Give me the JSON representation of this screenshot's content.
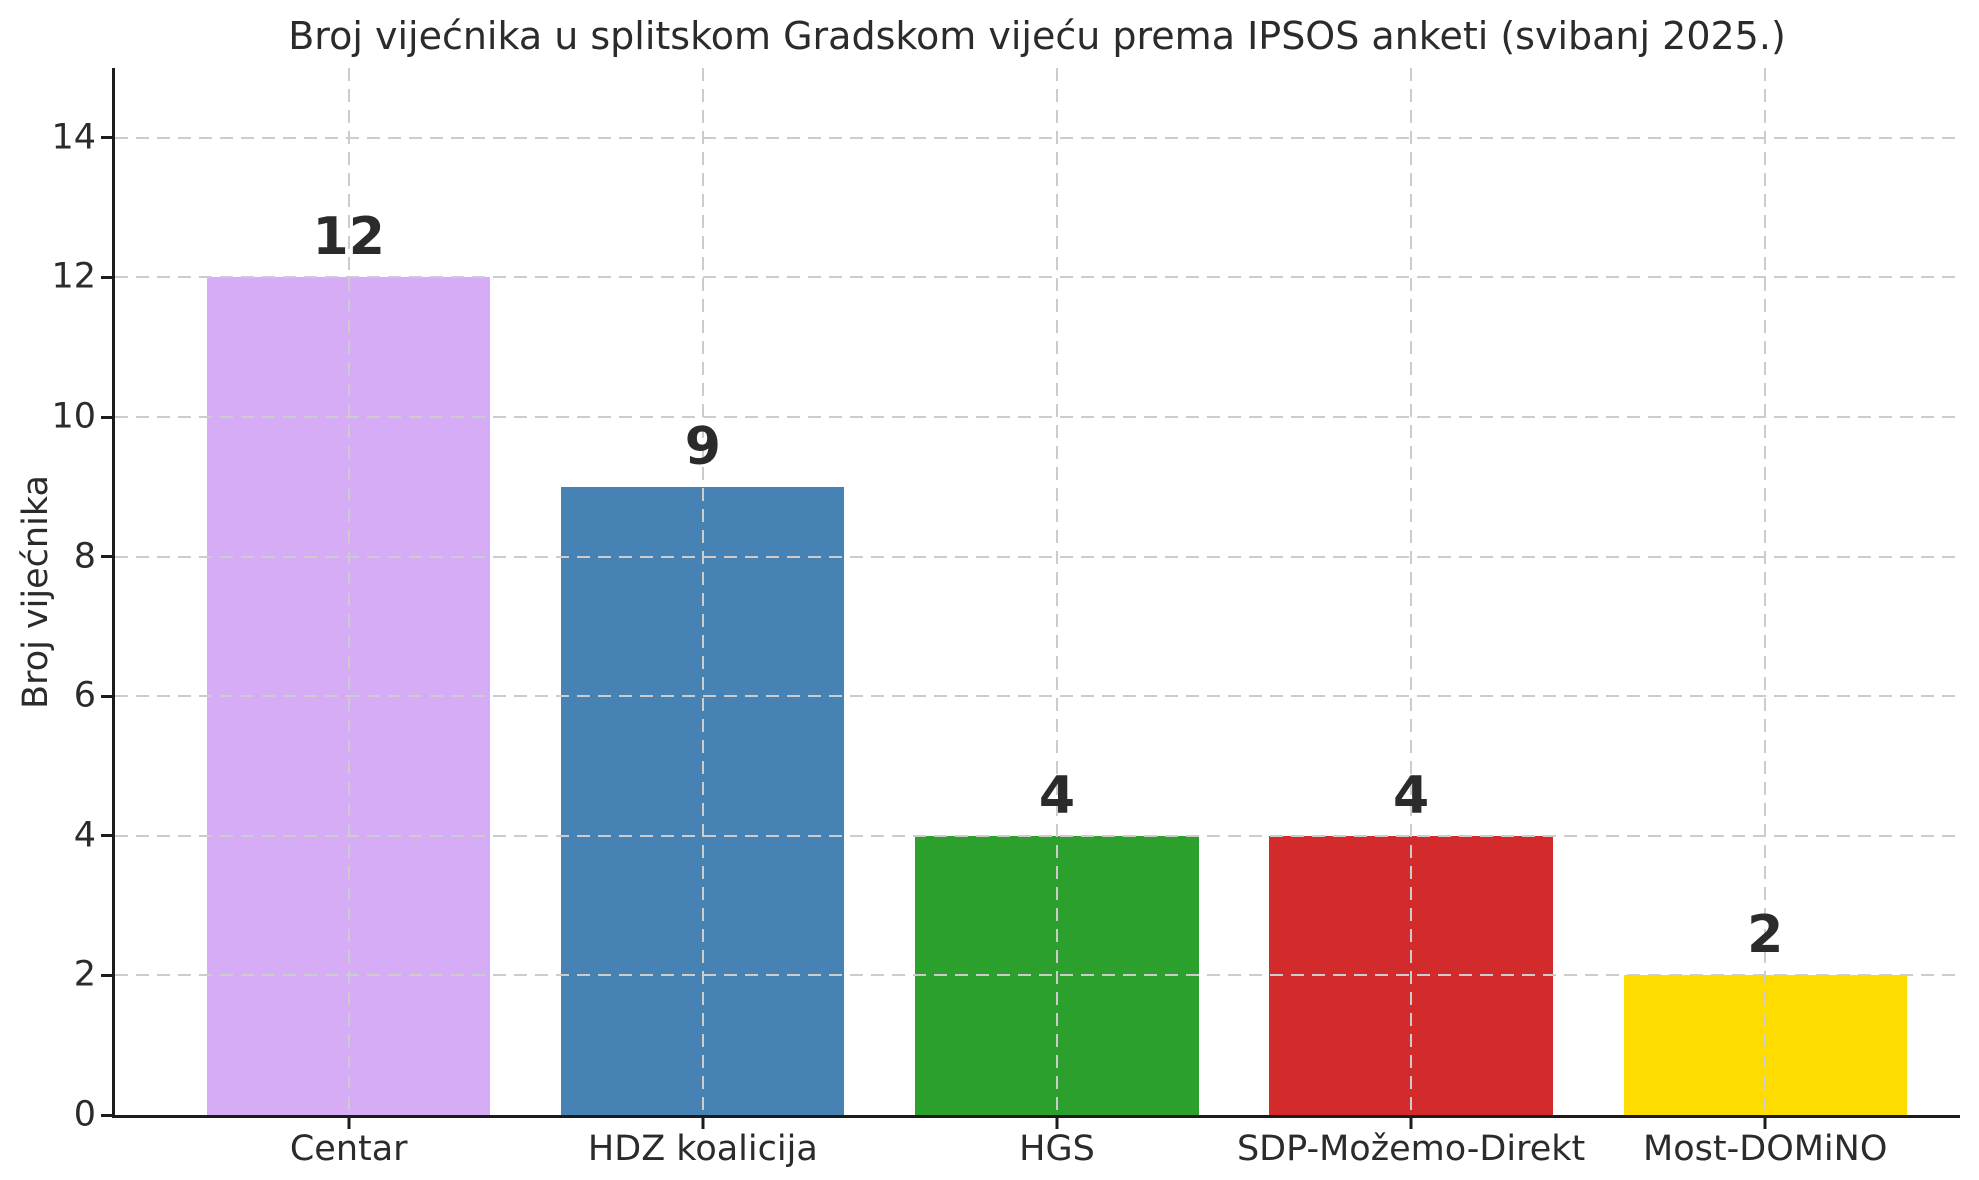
{
  "chart_data": {
    "type": "bar",
    "title": "Broj vijećnika u splitskom Gradskom vijeću prema IPSOS anketi (svibanj 2025.)",
    "ylabel": "Broj vijećnika",
    "xlabel": "",
    "categories": [
      "Centar",
      "HDZ koalicija",
      "HGS",
      "SDP-Možemo-Direkt",
      "Most-DOMiNO"
    ],
    "values": [
      12,
      9,
      4,
      4,
      2
    ],
    "value_labels": [
      "12",
      "9",
      "4",
      "4",
      "2"
    ],
    "bar_colors": [
      "#D5ACF5",
      "#4682B4",
      "#2CA02C",
      "#D32B2B",
      "#FFDC00"
    ],
    "ylim": [
      0,
      15
    ],
    "xlim": [
      -0.66,
      4.55
    ],
    "bar_width": 0.8,
    "yticks": [
      0,
      2,
      4,
      6,
      8,
      10,
      12,
      14
    ],
    "grid": "both-dashed",
    "legend": "none",
    "colors": {
      "grid": "#CCCCCC",
      "spine": "#1C1C1C",
      "text": "#2B2B2B",
      "background": "#FFFFFF"
    }
  }
}
